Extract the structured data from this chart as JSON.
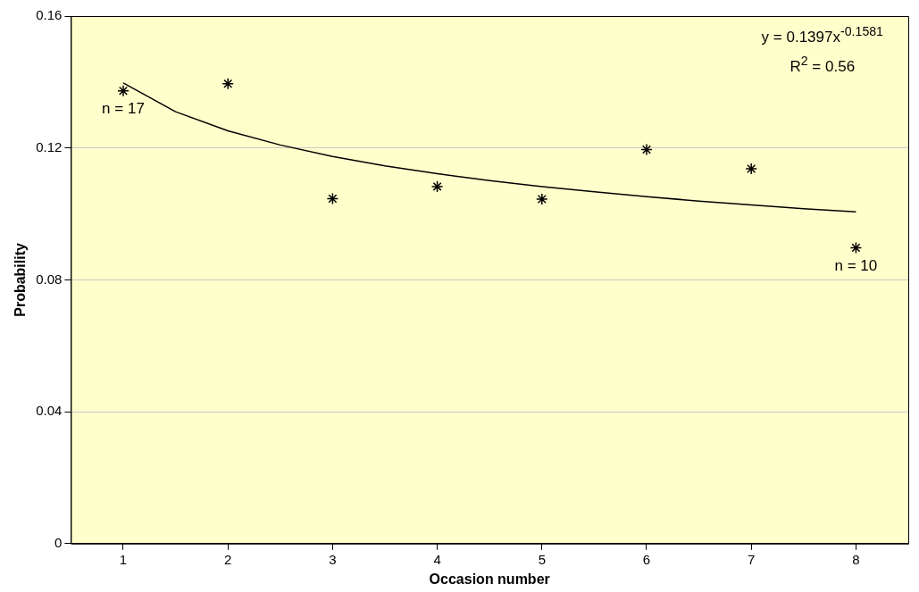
{
  "chart_data": {
    "type": "scatter",
    "xlabel": "Occasion number",
    "ylabel": "Probability",
    "xlim": [
      0.5,
      8.5
    ],
    "xticks": [
      1,
      2,
      3,
      4,
      5,
      6,
      7,
      8
    ],
    "ylim": [
      0,
      0.16
    ],
    "yticks": [
      0,
      0.04,
      0.08,
      0.12,
      0.16
    ],
    "grid": "y",
    "marker": "cross",
    "series": [
      {
        "type": "scatter",
        "color": "#000000",
        "x": [
          1,
          2,
          3,
          4,
          5,
          6,
          7,
          8
        ],
        "values": [
          0.1373,
          0.1395,
          0.1046,
          0.1083,
          0.1045,
          0.1195,
          0.1137,
          0.0897
        ]
      },
      {
        "type": "line",
        "color": "#000000",
        "marker": "none",
        "line_style": "solid",
        "x": [
          1,
          1.5,
          2,
          2.5,
          3,
          3.5,
          4,
          4.5,
          5,
          5.5,
          6,
          6.5,
          7,
          7.5,
          8
        ],
        "values": [
          0.1397,
          0.131,
          0.1252,
          0.1209,
          0.1174,
          0.1146,
          0.1122,
          0.1101,
          0.1083,
          0.1067,
          0.1052,
          0.1039,
          0.1027,
          0.1016,
          0.1006
        ]
      }
    ],
    "annotations": [
      "y = 0.1397x$^{-0.1581}$",
      "R$^{2}$ = 0.56",
      {
        "text": "n = 17",
        "x": 1,
        "y": 0.1373
      },
      {
        "text": "n = 10",
        "x": 8,
        "y": 0.0897
      }
    ]
  }
}
